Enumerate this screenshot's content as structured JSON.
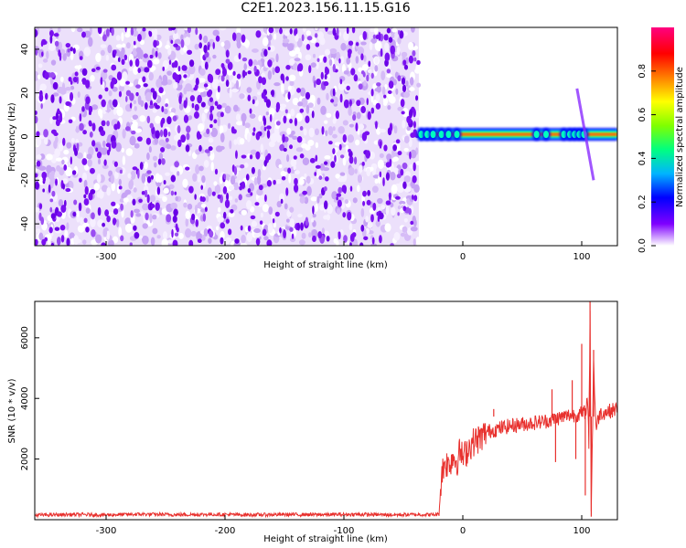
{
  "title": "C2E1.2023.156.11.15.G16",
  "chart_data": [
    {
      "type": "heatmap",
      "title": "",
      "xlabel": "Height of straight line (km)",
      "ylabel": "Frequency (Hz)",
      "xlim": [
        -360,
        130
      ],
      "ylim": [
        -50,
        50
      ],
      "xticks": [
        -300,
        -200,
        -100,
        0,
        100
      ],
      "yticks": [
        -40,
        -20,
        0,
        20,
        40
      ],
      "grid": false,
      "noise_region": {
        "x": [
          -360,
          -37
        ],
        "y": [
          -50,
          50
        ],
        "level": "low (0.0-0.2)"
      },
      "signal_band": {
        "x": [
          -37,
          130
        ],
        "frequency": 1,
        "peak_amplitude": 1.0
      },
      "spike_feature": {
        "x": [
          96,
          110
        ],
        "y": [
          -20,
          22
        ]
      },
      "colorbar": {
        "label": "Normalized spectral amplitude",
        "range": [
          0,
          1
        ],
        "ticks": [
          0.0,
          0.2,
          0.4,
          0.6,
          0.8
        ],
        "colormap": [
          "#ffffff",
          "#7f00ff",
          "#0000ff",
          "#00b4ff",
          "#00ff80",
          "#80ff00",
          "#ffff00",
          "#ff8000",
          "#ff0000",
          "#ff0080"
        ]
      }
    },
    {
      "type": "line",
      "title": "",
      "xlabel": "Height of straight line (km)",
      "ylabel": "SNR (10 * v/v)",
      "xlim": [
        -360,
        130
      ],
      "ylim": [
        0,
        7200
      ],
      "xticks": [
        -300,
        -200,
        -100,
        0,
        100
      ],
      "yticks": [
        2000,
        4000,
        6000
      ],
      "grid": false,
      "series": [
        {
          "color": "#e8312e",
          "x": [
            -360,
            -330,
            -300,
            -270,
            -240,
            -210,
            -180,
            -150,
            -120,
            -90,
            -60,
            -40,
            -25,
            -20,
            -18,
            -15,
            -12,
            -8,
            -5,
            -2,
            0,
            5,
            10,
            15,
            20,
            25,
            30,
            40,
            50,
            60,
            70,
            75,
            78,
            80,
            85,
            90,
            95,
            100,
            103,
            105,
            106,
            107,
            108,
            110,
            112,
            115,
            120,
            125,
            130
          ],
          "y": [
            150,
            170,
            160,
            180,
            165,
            175,
            160,
            170,
            165,
            175,
            160,
            170,
            165,
            180,
            1500,
            1900,
            1800,
            2100,
            1900,
            2300,
            2000,
            2400,
            2600,
            2700,
            2900,
            2950,
            3000,
            3100,
            3150,
            3200,
            3250,
            3300,
            3350,
            3350,
            3400,
            3450,
            3450,
            3500,
            3550,
            4000,
            2500,
            6800,
            300,
            5200,
            3000,
            3500,
            3550,
            3600,
            3650
          ]
        }
      ],
      "annotations": [
        {
          "x": 26,
          "y": 3650
        },
        {
          "x": 75,
          "y": 4300
        },
        {
          "x": 78,
          "y": 1900
        },
        {
          "x": 92,
          "y": 4600
        },
        {
          "x": 95,
          "y": 2000
        },
        {
          "x": 100,
          "y": 5800
        },
        {
          "x": 103,
          "y": 800
        },
        {
          "x": 107,
          "y": 7200
        },
        {
          "x": 108,
          "y": 100
        },
        {
          "x": 110,
          "y": 5600
        }
      ]
    }
  ]
}
